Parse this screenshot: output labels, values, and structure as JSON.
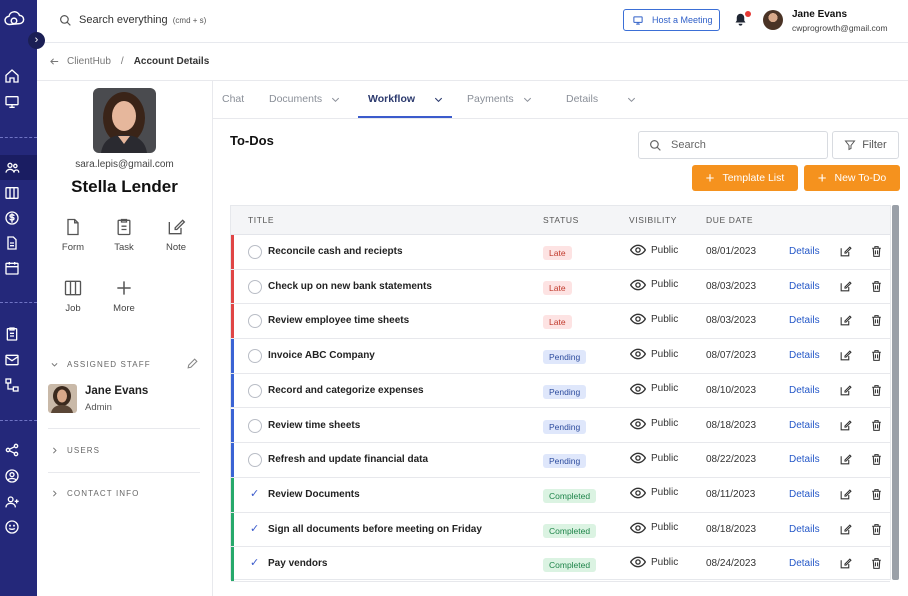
{
  "topbar": {
    "search_label": "Search everything",
    "search_shortcut": "(cmd + s)",
    "host_meeting_label": "Host a Meeting",
    "user_name": "Jane Evans",
    "user_email": "cwprogrowth@gmail.com"
  },
  "breadcrumb": {
    "root": "ClientHub",
    "separator": "/",
    "current": "Account Details"
  },
  "nav_rail": {
    "icons": [
      "home-icon",
      "monitor-icon",
      "people-icon",
      "columns-icon",
      "dollar-icon",
      "document-icon",
      "calendar-icon",
      "clipboard-icon",
      "mail-icon",
      "hierarchy-icon",
      "share-icon",
      "user-circle-icon",
      "add-user-icon",
      "smiley-icon"
    ],
    "active": "people-icon"
  },
  "profile": {
    "email": "sara.lepis@gmail.com",
    "name": "Stella Lender",
    "actions": [
      {
        "label": "Form",
        "icon": "file-icon"
      },
      {
        "label": "Task",
        "icon": "clipboard-icon"
      },
      {
        "label": "Note",
        "icon": "note-edit-icon"
      },
      {
        "label": "Job",
        "icon": "columns-icon"
      },
      {
        "label": "More",
        "icon": "plus-icon"
      }
    ],
    "assigned_staff_title": "ASSIGNED STAFF",
    "staff_name": "Jane Evans",
    "staff_role": "Admin",
    "users_title": "USERS",
    "contact_title": "CONTACT INFO"
  },
  "tabs": [
    {
      "label": "Chat",
      "has_dropdown": false
    },
    {
      "label": "Documents",
      "has_dropdown": true
    },
    {
      "label": "Workflow",
      "has_dropdown": true,
      "active": true
    },
    {
      "label": "Payments",
      "has_dropdown": true
    },
    {
      "label": "Details",
      "has_dropdown": true
    }
  ],
  "todos": {
    "title": "To-Dos",
    "search_placeholder": "Search",
    "filter_label": "Filter",
    "template_list_label": "Template List",
    "new_todo_label": "New To-Do",
    "columns": [
      "TITLE",
      "STATUS",
      "VISIBILITY",
      "DUE DATE"
    ],
    "rows": [
      {
        "title": "Reconcile cash and reciepts",
        "status": "Late",
        "visibility": "Public",
        "due": "08/01/2023",
        "action": "Details",
        "done": false
      },
      {
        "title": "Check up on new bank statements",
        "status": "Late",
        "visibility": "Public",
        "due": "08/03/2023",
        "action": "Details",
        "done": false
      },
      {
        "title": "Review employee time sheets",
        "status": "Late",
        "visibility": "Public",
        "due": "08/03/2023",
        "action": "Details",
        "done": false
      },
      {
        "title": "Invoice ABC Company",
        "status": "Pending",
        "visibility": "Public",
        "due": "08/07/2023",
        "action": "Details",
        "done": false
      },
      {
        "title": "Record and categorize expenses",
        "status": "Pending",
        "visibility": "Public",
        "due": "08/10/2023",
        "action": "Details",
        "done": false
      },
      {
        "title": "Review time sheets",
        "status": "Pending",
        "visibility": "Public",
        "due": "08/18/2023",
        "action": "Details",
        "done": false
      },
      {
        "title": "Refresh and update financial data",
        "status": "Pending",
        "visibility": "Public",
        "due": "08/22/2023",
        "action": "Details",
        "done": false
      },
      {
        "title": "Review Documents",
        "status": "Completed",
        "visibility": "Public",
        "due": "08/11/2023",
        "action": "Details",
        "done": true
      },
      {
        "title": "Sign all documents before meeting on Friday",
        "status": "Completed",
        "visibility": "Public",
        "due": "08/18/2023",
        "action": "Details",
        "done": true
      },
      {
        "title": "Pay vendors",
        "status": "Completed",
        "visibility": "Public",
        "due": "08/24/2023",
        "action": "Details",
        "done": true
      }
    ]
  },
  "colors": {
    "rail": "#24287a",
    "accent": "#3b5bcc",
    "orange": "#f5921e",
    "late": "#e04545",
    "pending": "#3a63d4",
    "completed": "#27a96b"
  }
}
